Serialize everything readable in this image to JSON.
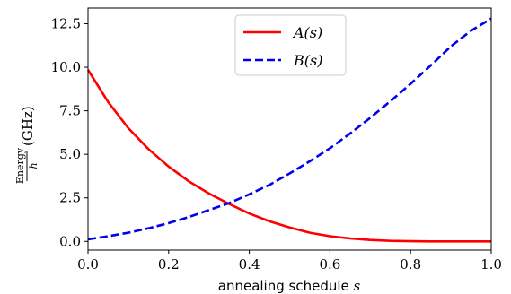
{
  "chart_data": {
    "type": "line",
    "xlabel_text": "annealing schedule",
    "xlabel_var": "s",
    "ylabel_num": "Energy",
    "ylabel_den": "h",
    "ylabel_unit": "(GHz)",
    "xlim": [
      0.0,
      1.0
    ],
    "ylim": [
      -0.5,
      13.4
    ],
    "x_ticks": [
      0.0,
      0.2,
      0.4,
      0.6,
      0.8,
      1.0
    ],
    "x_tick_labels": [
      "0.0",
      "0.2",
      "0.4",
      "0.6",
      "0.8",
      "1.0"
    ],
    "y_ticks": [
      0.0,
      2.5,
      5.0,
      7.5,
      10.0,
      12.5
    ],
    "y_tick_labels": [
      "0.0",
      "2.5",
      "5.0",
      "7.5",
      "10.0",
      "12.5"
    ],
    "grid": false,
    "legend": "top-center",
    "x": [
      0.0,
      0.05,
      0.1,
      0.15,
      0.2,
      0.25,
      0.3,
      0.35,
      0.4,
      0.45,
      0.5,
      0.55,
      0.6,
      0.65,
      0.7,
      0.75,
      0.8,
      0.85,
      0.9,
      0.95,
      1.0
    ],
    "series": [
      {
        "name": "A(s)",
        "color": "#ff0000",
        "dash": "solid",
        "values": [
          9.85,
          8.0,
          6.5,
          5.3,
          4.3,
          3.45,
          2.75,
          2.15,
          1.6,
          1.15,
          0.8,
          0.5,
          0.3,
          0.17,
          0.08,
          0.03,
          0.01,
          0.0,
          0.0,
          0.0,
          0.0
        ]
      },
      {
        "name": "B(s)",
        "color": "#0000ee",
        "dash": "dashed",
        "values": [
          0.12,
          0.3,
          0.5,
          0.75,
          1.05,
          1.4,
          1.8,
          2.2,
          2.7,
          3.25,
          3.9,
          4.6,
          5.35,
          6.2,
          7.1,
          8.05,
          9.05,
          10.1,
          11.2,
          12.1,
          12.8
        ]
      }
    ]
  }
}
